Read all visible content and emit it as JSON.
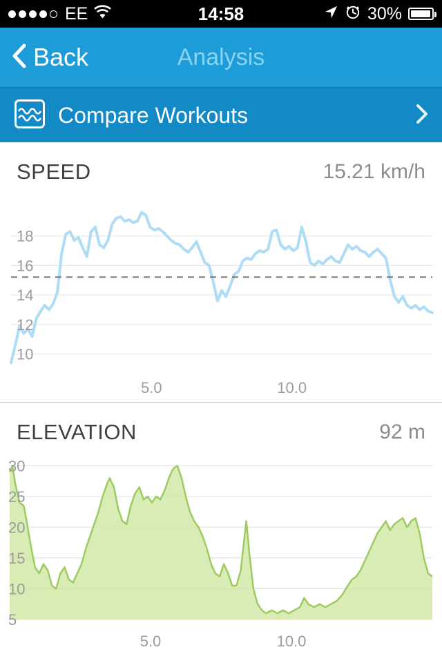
{
  "colors": {
    "nav_blue": "#1d9cd8",
    "compare_blue": "#1389c5",
    "compare_divider": "#0f7fb7",
    "title_light": "#8bd4f1",
    "speed_line": "#aedcf4",
    "elevation_fill": "#cfe7a4",
    "elevation_line": "#9ccb60"
  },
  "status_bar": {
    "signal_filled_dots": 4,
    "signal_total_dots": 5,
    "carrier": "EE",
    "time": "14:58",
    "battery": "30%"
  },
  "nav": {
    "back_label": "Back",
    "title": "Analysis"
  },
  "compare_row": {
    "label": "Compare Workouts"
  },
  "speed_section": {
    "title": "SPEED",
    "value": "15.21 km/h"
  },
  "elevation_section": {
    "title": "ELEVATION",
    "value": "92 m"
  },
  "chart_data": [
    {
      "id": "speed",
      "type": "line",
      "title": "SPEED",
      "unit": "km/h",
      "current_value": 15.21,
      "avg_value": 15.21,
      "ylim": [
        9,
        20.6
      ],
      "xlim": [
        0,
        15
      ],
      "y_ticks": [
        10,
        12,
        14,
        16,
        18
      ],
      "x_ticks": [
        {
          "v": 5,
          "label": "5.0"
        },
        {
          "v": 10,
          "label": "10.0"
        }
      ],
      "line_color": "#aedcf4",
      "grid_color": "#e4e4e4",
      "tick_color": "#9b9b9b",
      "points": [
        [
          0,
          9.4
        ],
        [
          0.15,
          10.6
        ],
        [
          0.3,
          11.9
        ],
        [
          0.45,
          11.4
        ],
        [
          0.6,
          11.7
        ],
        [
          0.75,
          11.2
        ],
        [
          0.9,
          12.4
        ],
        [
          1.05,
          12.9
        ],
        [
          1.2,
          13.3
        ],
        [
          1.35,
          13.0
        ],
        [
          1.5,
          13.4
        ],
        [
          1.65,
          14.2
        ],
        [
          1.8,
          16.8
        ],
        [
          1.95,
          18.1
        ],
        [
          2.1,
          18.3
        ],
        [
          2.25,
          17.7
        ],
        [
          2.4,
          17.9
        ],
        [
          2.55,
          17.2
        ],
        [
          2.7,
          16.6
        ],
        [
          2.85,
          18.3
        ],
        [
          3.0,
          18.6
        ],
        [
          3.15,
          17.4
        ],
        [
          3.3,
          17.2
        ],
        [
          3.45,
          17.7
        ],
        [
          3.6,
          18.8
        ],
        [
          3.75,
          19.2
        ],
        [
          3.9,
          19.3
        ],
        [
          4.05,
          19.0
        ],
        [
          4.2,
          19.1
        ],
        [
          4.35,
          18.9
        ],
        [
          4.5,
          19.0
        ],
        [
          4.65,
          19.6
        ],
        [
          4.8,
          19.4
        ],
        [
          4.95,
          18.6
        ],
        [
          5.1,
          18.4
        ],
        [
          5.25,
          18.5
        ],
        [
          5.4,
          18.3
        ],
        [
          5.55,
          18.0
        ],
        [
          5.7,
          17.7
        ],
        [
          5.85,
          17.5
        ],
        [
          6.0,
          17.4
        ],
        [
          6.15,
          17.1
        ],
        [
          6.3,
          16.9
        ],
        [
          6.45,
          17.2
        ],
        [
          6.6,
          17.6
        ],
        [
          6.75,
          16.9
        ],
        [
          6.9,
          16.2
        ],
        [
          7.05,
          16.0
        ],
        [
          7.2,
          14.9
        ],
        [
          7.35,
          13.6
        ],
        [
          7.5,
          14.3
        ],
        [
          7.65,
          13.9
        ],
        [
          7.8,
          14.6
        ],
        [
          7.95,
          15.4
        ],
        [
          8.1,
          15.6
        ],
        [
          8.25,
          16.3
        ],
        [
          8.4,
          16.5
        ],
        [
          8.55,
          16.4
        ],
        [
          8.7,
          16.8
        ],
        [
          8.85,
          17.0
        ],
        [
          9.0,
          16.9
        ],
        [
          9.15,
          17.1
        ],
        [
          9.3,
          18.3
        ],
        [
          9.45,
          18.4
        ],
        [
          9.6,
          17.4
        ],
        [
          9.75,
          17.1
        ],
        [
          9.9,
          17.3
        ],
        [
          10.05,
          17.0
        ],
        [
          10.2,
          17.2
        ],
        [
          10.35,
          18.6
        ],
        [
          10.5,
          17.6
        ],
        [
          10.65,
          16.2
        ],
        [
          10.8,
          16.0
        ],
        [
          10.95,
          16.3
        ],
        [
          11.1,
          16.1
        ],
        [
          11.25,
          16.4
        ],
        [
          11.4,
          16.6
        ],
        [
          11.55,
          16.3
        ],
        [
          11.7,
          16.2
        ],
        [
          11.85,
          16.8
        ],
        [
          12.0,
          17.4
        ],
        [
          12.15,
          17.1
        ],
        [
          12.3,
          17.3
        ],
        [
          12.45,
          17.0
        ],
        [
          12.6,
          16.9
        ],
        [
          12.75,
          16.6
        ],
        [
          12.9,
          16.9
        ],
        [
          13.05,
          17.1
        ],
        [
          13.2,
          16.8
        ],
        [
          13.35,
          16.5
        ],
        [
          13.5,
          15.0
        ],
        [
          13.65,
          13.9
        ],
        [
          13.8,
          13.5
        ],
        [
          13.95,
          13.9
        ],
        [
          14.1,
          13.3
        ],
        [
          14.25,
          13.1
        ],
        [
          14.4,
          13.3
        ],
        [
          14.55,
          13.0
        ],
        [
          14.7,
          13.2
        ],
        [
          14.85,
          12.9
        ],
        [
          15.0,
          12.8
        ]
      ]
    },
    {
      "id": "elevation",
      "type": "area",
      "title": "ELEVATION",
      "unit": "m",
      "current_value": 92,
      "ylim": [
        5,
        31.5
      ],
      "xlim": [
        0,
        15
      ],
      "y_ticks": [
        5,
        10,
        15,
        20,
        25,
        30
      ],
      "x_ticks": [
        {
          "v": 5,
          "label": "5.0"
        },
        {
          "v": 10,
          "label": "10.0"
        }
      ],
      "fill_color": "#cfe7a4",
      "fill_opacity": 0.8,
      "line_color": "#9ccb60",
      "grid_color": "#dddddd",
      "tick_color": "#9b9b9b",
      "points": [
        [
          0,
          29
        ],
        [
          0.1,
          30
        ],
        [
          0.2,
          27
        ],
        [
          0.35,
          24
        ],
        [
          0.5,
          23.5
        ],
        [
          0.6,
          21
        ],
        [
          0.75,
          17
        ],
        [
          0.9,
          13.5
        ],
        [
          1.05,
          12.5
        ],
        [
          1.2,
          14
        ],
        [
          1.35,
          13
        ],
        [
          1.5,
          10.5
        ],
        [
          1.65,
          10
        ],
        [
          1.8,
          12.5
        ],
        [
          1.95,
          13.5
        ],
        [
          2.1,
          11.5
        ],
        [
          2.25,
          11
        ],
        [
          2.4,
          12.5
        ],
        [
          2.55,
          14
        ],
        [
          2.7,
          16.5
        ],
        [
          2.85,
          18.5
        ],
        [
          3.0,
          20.5
        ],
        [
          3.15,
          22.5
        ],
        [
          3.3,
          25
        ],
        [
          3.45,
          27
        ],
        [
          3.55,
          28
        ],
        [
          3.7,
          26.5
        ],
        [
          3.85,
          23
        ],
        [
          4.0,
          21
        ],
        [
          4.15,
          20.5
        ],
        [
          4.3,
          23.5
        ],
        [
          4.45,
          25.5
        ],
        [
          4.6,
          26.5
        ],
        [
          4.75,
          24.5
        ],
        [
          4.9,
          25
        ],
        [
          5.05,
          24
        ],
        [
          5.2,
          25
        ],
        [
          5.35,
          24.5
        ],
        [
          5.5,
          26
        ],
        [
          5.65,
          28
        ],
        [
          5.8,
          29.5
        ],
        [
          5.95,
          30
        ],
        [
          6.1,
          28
        ],
        [
          6.25,
          25
        ],
        [
          6.4,
          22.5
        ],
        [
          6.55,
          21
        ],
        [
          6.7,
          20
        ],
        [
          6.85,
          18.5
        ],
        [
          7.0,
          16.5
        ],
        [
          7.15,
          14
        ],
        [
          7.3,
          12.5
        ],
        [
          7.45,
          12
        ],
        [
          7.6,
          14
        ],
        [
          7.75,
          12.5
        ],
        [
          7.9,
          10.5
        ],
        [
          8.05,
          10.5
        ],
        [
          8.2,
          13
        ],
        [
          8.3,
          17
        ],
        [
          8.4,
          21
        ],
        [
          8.5,
          16
        ],
        [
          8.65,
          10
        ],
        [
          8.8,
          7.5
        ],
        [
          8.95,
          6.5
        ],
        [
          9.1,
          6
        ],
        [
          9.3,
          6.5
        ],
        [
          9.5,
          6
        ],
        [
          9.7,
          6.5
        ],
        [
          9.9,
          6
        ],
        [
          10.1,
          6.5
        ],
        [
          10.3,
          7
        ],
        [
          10.45,
          8.5
        ],
        [
          10.6,
          7.5
        ],
        [
          10.8,
          7
        ],
        [
          11.0,
          7.5
        ],
        [
          11.2,
          7
        ],
        [
          11.4,
          7.5
        ],
        [
          11.6,
          8
        ],
        [
          11.8,
          9
        ],
        [
          12.0,
          10.5
        ],
        [
          12.15,
          11.5
        ],
        [
          12.3,
          12
        ],
        [
          12.45,
          13
        ],
        [
          12.6,
          14.5
        ],
        [
          12.75,
          16
        ],
        [
          12.9,
          17.5
        ],
        [
          13.05,
          19
        ],
        [
          13.2,
          20
        ],
        [
          13.35,
          21
        ],
        [
          13.5,
          19.5
        ],
        [
          13.65,
          20.5
        ],
        [
          13.8,
          21
        ],
        [
          13.95,
          21.5
        ],
        [
          14.1,
          20
        ],
        [
          14.25,
          21
        ],
        [
          14.4,
          21.5
        ],
        [
          14.55,
          19
        ],
        [
          14.7,
          15
        ],
        [
          14.85,
          12.5
        ],
        [
          15.0,
          12
        ]
      ]
    }
  ]
}
